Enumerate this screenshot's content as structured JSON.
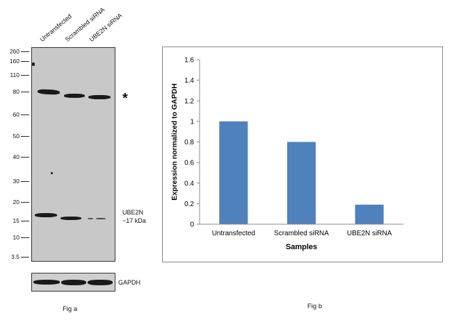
{
  "fig_a": {
    "lanes": [
      "Untransfected",
      "Scrambled siRNA",
      "UBE2N siRNA"
    ],
    "markers": [
      "260",
      "160",
      "110",
      "80",
      "60",
      "50",
      "40",
      "30",
      "20",
      "15",
      "10",
      "3.5"
    ],
    "asterisk": "*",
    "target_label": "UBE2N",
    "target_size": "~17 kDa",
    "loading_control": "GAPDH",
    "caption": "Fig a"
  },
  "fig_b": {
    "caption": "Fig b"
  },
  "chart_data": {
    "type": "bar",
    "categories": [
      "Untransfected",
      "Scrambled siRNA",
      "UBE2N siRNA"
    ],
    "values": [
      1.0,
      0.8,
      0.19
    ],
    "xlabel": "Samples",
    "ylabel": "Expression normalized to GAPDH",
    "ylim": [
      0,
      1.6
    ],
    "yticks": [
      "0",
      "0.2",
      "0.4",
      "0.6",
      "0.8",
      "1",
      "1.2",
      "1.4",
      "1.6"
    ],
    "bar_color": "#4f81bd",
    "grid": false,
    "legend": "none"
  }
}
